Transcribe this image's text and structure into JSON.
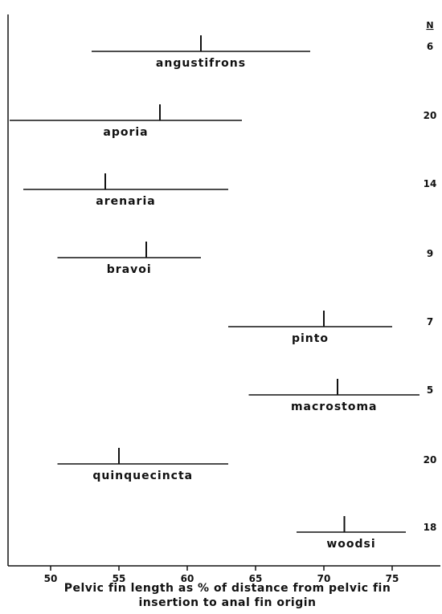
{
  "chart_data": {
    "type": "range",
    "n_header": "N",
    "xlabel_lines": [
      "Pelvic fin length as % of distance from pelvic fin",
      "insertion to anal fin origin"
    ],
    "xlim": [
      47,
      77
    ],
    "x_ticks": [
      50,
      55,
      60,
      65,
      70,
      75
    ],
    "series": [
      {
        "name": "angustifrons",
        "min": 53,
        "mean": 61,
        "max": 69,
        "n": "6"
      },
      {
        "name": "aporia",
        "min": 47,
        "mean": 58,
        "max": 64,
        "n": "20"
      },
      {
        "name": "arenaria",
        "min": 48,
        "mean": 54,
        "max": 63,
        "n": "14"
      },
      {
        "name": "bravoi",
        "min": 50.5,
        "mean": 57,
        "max": 61,
        "n": "9"
      },
      {
        "name": "pinto",
        "min": 63,
        "mean": 70,
        "max": 75,
        "n": "7"
      },
      {
        "name": "macrostoma",
        "min": 64.5,
        "mean": 71,
        "max": 77,
        "n": "5"
      },
      {
        "name": "quinquecincta",
        "min": 50.5,
        "mean": 55,
        "max": 63,
        "n": "20"
      },
      {
        "name": "woodsi",
        "min": 68,
        "mean": 71.5,
        "max": 76,
        "n": "18"
      }
    ]
  }
}
